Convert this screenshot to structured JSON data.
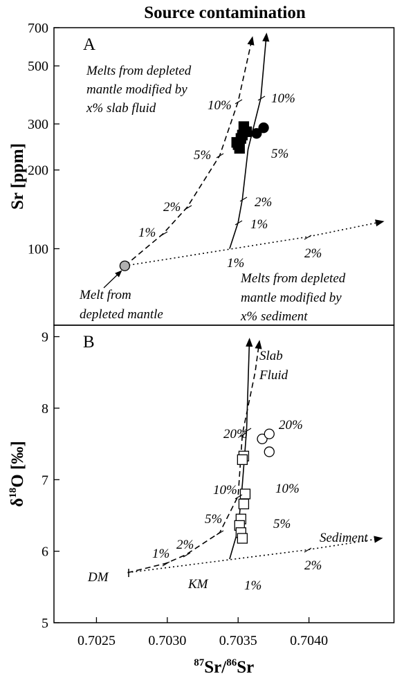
{
  "chart_data": [
    {
      "type": "line",
      "title": "Source contamination",
      "panel_label": "A",
      "ylabel": "Sr [ppm]",
      "yscale": "log",
      "xlim": [
        0.7022,
        0.7046
      ],
      "ylim": [
        51,
        700
      ],
      "yticks": [
        100,
        200,
        300,
        500,
        700
      ],
      "series": [
        {
          "line_style": "dashed",
          "color": "#000",
          "x": [
            0.7027,
            0.70297,
            0.70314,
            0.70337,
            0.7035,
            0.7036
          ],
          "values": [
            86,
            114,
            144,
            227,
            365,
            640
          ]
        },
        {
          "line_style": "solid",
          "color": "#000",
          "x": [
            0.70344,
            0.7035,
            0.70353,
            0.70357,
            0.70366,
            0.7037
          ],
          "values": [
            100,
            126,
            155,
            240,
            376,
            660
          ]
        },
        {
          "line_style": "dotted",
          "color": "#000",
          "x": [
            0.7027,
            0.70399,
            0.70452
          ],
          "values": [
            86,
            111,
            127
          ]
        },
        {
          "marker": "circle",
          "color": "#000",
          "fill": "#b0b0b0",
          "x": [
            0.7027
          ],
          "values": [
            86
          ]
        },
        {
          "marker": "square",
          "color": "#000",
          "fill": "#000",
          "x": [
            0.70354,
            0.70356,
            0.70352,
            0.7035,
            0.70353,
            0.70349,
            0.70351
          ],
          "values": [
            293,
            280,
            264,
            250,
            272,
            255,
            242
          ]
        },
        {
          "marker": "circle",
          "color": "#000",
          "fill": "#000",
          "x": [
            0.70363,
            0.70368
          ],
          "values": [
            276,
            290
          ]
        }
      ],
      "annotations": [
        "Melts from depleted",
        "mantle modified by",
        "x% slab fluid",
        "10%",
        "5%",
        "2%",
        "1%",
        "10%",
        "5%",
        "2%",
        "1%",
        "1%",
        "2%",
        "Melt from",
        "depleted mantle",
        "Melts from depleted",
        "mantle  modified by",
        "x% sediment"
      ]
    },
    {
      "type": "line",
      "panel_label": "B",
      "ylabel_parts": [
        "δ",
        "18",
        "O [‰]"
      ],
      "xlabel_parts": [
        "87",
        "Sr/",
        "86",
        "Sr"
      ],
      "xlim": [
        0.7022,
        0.7046
      ],
      "ylim": [
        5,
        9.16
      ],
      "yticks": [
        5,
        6,
        7,
        8,
        9
      ],
      "xticks": [
        0.7025,
        {
          "value": 0.703,
          "label": "0.7030"
        },
        0.7035,
        {
          "value": 0.704,
          "label": "0.7040"
        }
      ],
      "series": [
        {
          "line_style": "dashed",
          "color": "#000",
          "x": [
            0.70272,
            0.70299,
            0.70313,
            0.70337,
            0.7035,
            0.70353,
            0.70362,
            0.70365
          ],
          "values": [
            5.7,
            5.83,
            5.95,
            6.26,
            6.77,
            7.64,
            8.5,
            8.93
          ]
        },
        {
          "line_style": "solid",
          "color": "#000",
          "x": [
            0.70344,
            0.7035,
            0.70353,
            0.70356,
            0.70358
          ],
          "values": [
            5.89,
            6.3,
            6.94,
            7.7,
            8.96
          ]
        },
        {
          "line_style": "dotted",
          "color": "#000",
          "x": [
            0.70272,
            0.70399,
            0.70451
          ],
          "values": [
            5.7,
            6.02,
            6.18
          ]
        },
        {
          "marker": "square",
          "color": "#000",
          "fill": "#fff",
          "x": [
            0.70354,
            0.70353,
            0.70355,
            0.70354,
            0.70352,
            0.70351,
            0.70352,
            0.70353
          ],
          "values": [
            7.33,
            7.28,
            6.8,
            6.66,
            6.45,
            6.36,
            6.26,
            6.18
          ]
        },
        {
          "marker": "circle",
          "color": "#000",
          "fill": "#fff",
          "x": [
            0.70367,
            0.70372,
            0.70372
          ],
          "values": [
            7.57,
            7.64,
            7.39
          ]
        }
      ],
      "annotations": [
        "Slab",
        "Fluid",
        "20%",
        "20%",
        "10%",
        "10%",
        "5%",
        "5%",
        "2%",
        "1%",
        "1%",
        "2%",
        "DM",
        "KM",
        "Sediment"
      ]
    }
  ]
}
